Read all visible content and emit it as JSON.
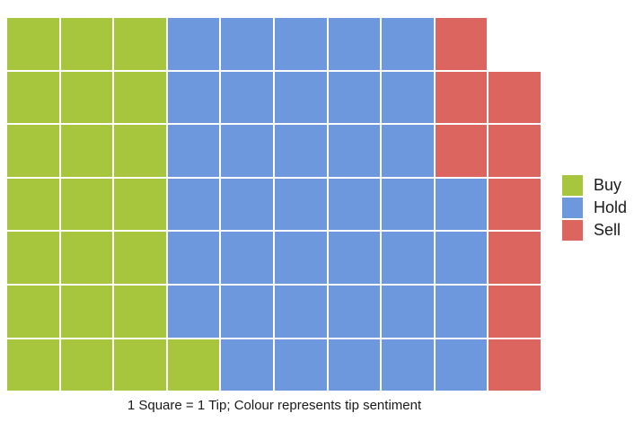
{
  "caption": "1 Square = 1 Tip; Colour represents tip sentiment",
  "colors": {
    "background": "#ffffff",
    "gap": "#ffffff",
    "text": "#1a1a1a",
    "buy": "#a7c63e",
    "hold": "#6d98dd",
    "sell": "#dd6560"
  },
  "legend": {
    "position": "right",
    "items": [
      {
        "key": "buy",
        "label": "Buy",
        "color": "#a7c63e"
      },
      {
        "key": "hold",
        "label": "Hold",
        "color": "#6d98dd"
      },
      {
        "key": "sell",
        "label": "Sell",
        "color": "#dd6560"
      }
    ]
  },
  "chart_data": {
    "type": "waffle",
    "title": "",
    "caption": "1 Square = 1 Tip; Colour represents tip sentiment",
    "unit": "1 square = 1 tip",
    "rows": 7,
    "cols": 10,
    "total_squares": 69,
    "fill_order": "column-by-column, bottom to top, left to right",
    "series": [
      {
        "name": "Buy",
        "value": 22,
        "color": "#a7c63e"
      },
      {
        "name": "Hold",
        "value": 38,
        "color": "#6d98dd"
      },
      {
        "name": "Sell",
        "value": 9,
        "color": "#dd6560"
      }
    ],
    "grid": [
      [
        "buy",
        "buy",
        "buy",
        "hold",
        "hold",
        "hold",
        "hold",
        "hold",
        "sell",
        null
      ],
      [
        "buy",
        "buy",
        "buy",
        "hold",
        "hold",
        "hold",
        "hold",
        "hold",
        "sell",
        "sell"
      ],
      [
        "buy",
        "buy",
        "buy",
        "hold",
        "hold",
        "hold",
        "hold",
        "hold",
        "sell",
        "sell"
      ],
      [
        "buy",
        "buy",
        "buy",
        "hold",
        "hold",
        "hold",
        "hold",
        "hold",
        "hold",
        "sell"
      ],
      [
        "buy",
        "buy",
        "buy",
        "hold",
        "hold",
        "hold",
        "hold",
        "hold",
        "hold",
        "sell"
      ],
      [
        "buy",
        "buy",
        "buy",
        "hold",
        "hold",
        "hold",
        "hold",
        "hold",
        "hold",
        "sell"
      ],
      [
        "buy",
        "buy",
        "buy",
        "buy",
        "hold",
        "hold",
        "hold",
        "hold",
        "hold",
        "sell"
      ]
    ],
    "legend_entries": [
      "Buy",
      "Hold",
      "Sell"
    ],
    "grid_lines": "white gaps between squares",
    "axes": "none"
  }
}
